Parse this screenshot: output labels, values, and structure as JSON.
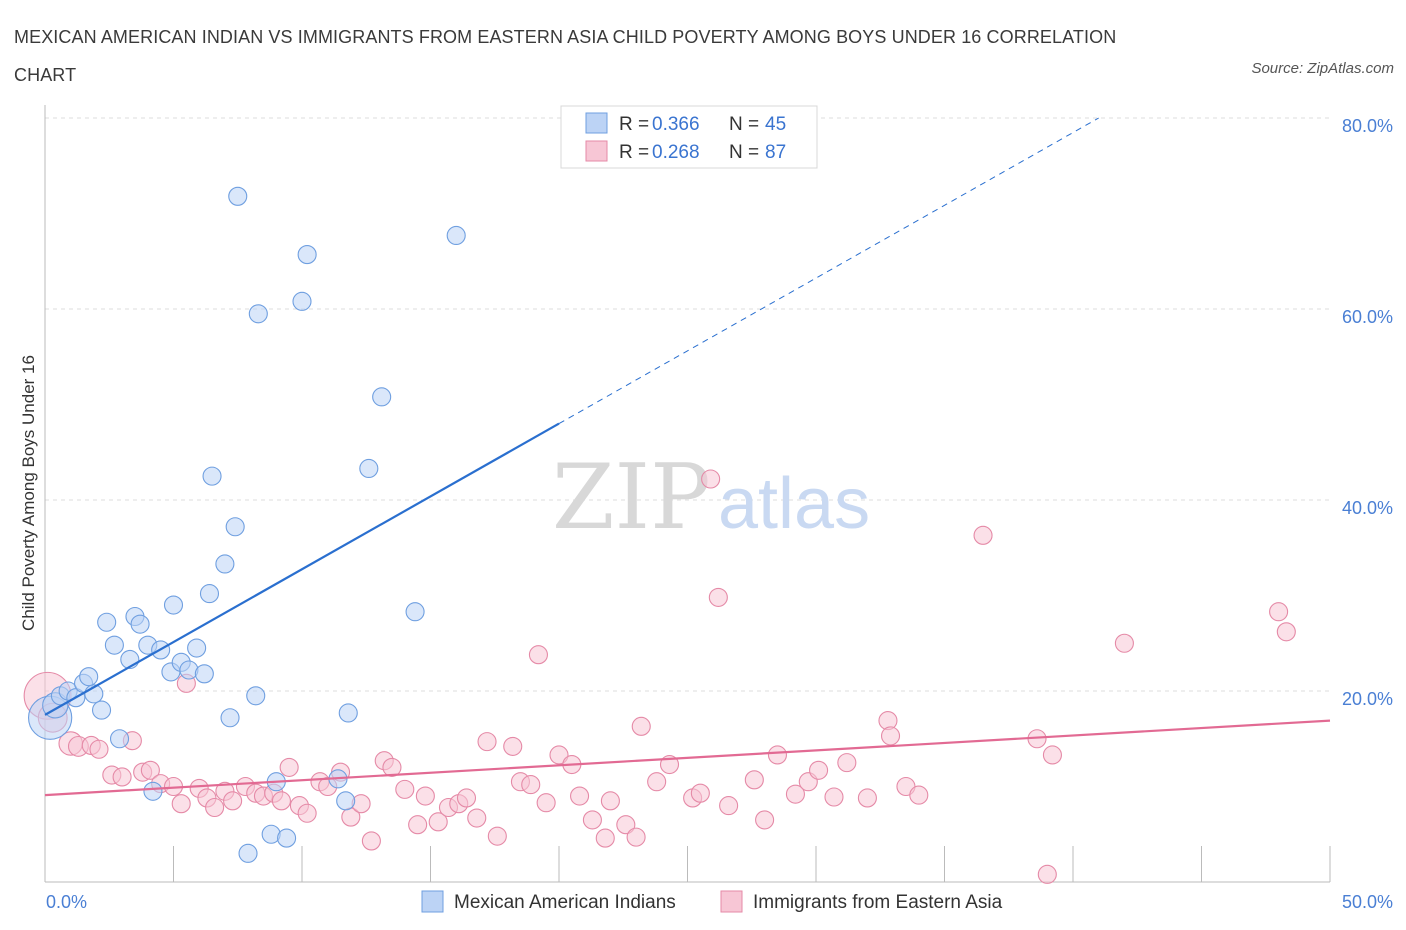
{
  "title": "MEXICAN AMERICAN INDIAN VS IMMIGRANTS FROM EASTERN ASIA CHILD POVERTY AMONG BOYS UNDER 16 CORRELATION CHART",
  "source": "Source: ZipAtlas.com",
  "watermark": {
    "zip": "ZIP",
    "atlas": "atlas"
  },
  "colors": {
    "blue": "#6f9fe0",
    "blue_fill": "#bcd3f5",
    "blue_line": "#2a6fcf",
    "pink": "#e58aa7",
    "pink_fill": "#f7c6d5",
    "pink_line": "#e26a93"
  },
  "legend": {
    "rows": [
      {
        "r_label": "R =",
        "r_value": "0.366",
        "n_label": "N =",
        "n_value": "45"
      },
      {
        "r_label": "R =",
        "r_value": "0.268",
        "n_label": "N =",
        "n_value": "87"
      }
    ]
  },
  "chart_data": {
    "type": "scatter",
    "xlabel": "",
    "ylabel": "Child Poverty Among Boys Under 16",
    "xlim": [
      0,
      50
    ],
    "ylim": [
      0,
      80
    ],
    "x_tick_labels": [
      "0.0%",
      "50.0%"
    ],
    "y_ticks": [
      20,
      40,
      60,
      80
    ],
    "y_tick_labels": [
      "20.0%",
      "40.0%",
      "60.0%",
      "80.0%"
    ],
    "grid": true,
    "legend_position": "top-center",
    "series": [
      {
        "name": "Mexican American Indians",
        "r": 0.366,
        "n": 45,
        "trend": {
          "x0": 0,
          "y0": 17.5,
          "x1": 20,
          "y1": 48,
          "dashed_to_x": 41,
          "dashed_to_y": 80
        },
        "points": [
          [
            0.2,
            17.2,
            2.4
          ],
          [
            0.4,
            18.5,
            1.4
          ],
          [
            0.6,
            19.5,
            1
          ],
          [
            0.9,
            20.0,
            1
          ],
          [
            1.2,
            19.3,
            1
          ],
          [
            1.5,
            20.8,
            1
          ],
          [
            1.7,
            21.5,
            1
          ],
          [
            1.9,
            19.7,
            1
          ],
          [
            2.2,
            18.0,
            1
          ],
          [
            2.4,
            27.2,
            1
          ],
          [
            2.7,
            24.8,
            1
          ],
          [
            2.9,
            15.0,
            1
          ],
          [
            3.3,
            23.3,
            1
          ],
          [
            3.5,
            27.8,
            1
          ],
          [
            3.7,
            27.0,
            1
          ],
          [
            4.0,
            24.8,
            1
          ],
          [
            4.2,
            9.5,
            1
          ],
          [
            4.5,
            24.3,
            1
          ],
          [
            4.9,
            22.0,
            1
          ],
          [
            5.0,
            29.0,
            1
          ],
          [
            5.3,
            23.0,
            1
          ],
          [
            5.6,
            22.2,
            1
          ],
          [
            5.9,
            24.5,
            1
          ],
          [
            6.2,
            21.8,
            1
          ],
          [
            6.4,
            30.2,
            1
          ],
          [
            6.5,
            42.5,
            1
          ],
          [
            7.0,
            33.3,
            1
          ],
          [
            7.2,
            17.2,
            1
          ],
          [
            7.4,
            37.2,
            1
          ],
          [
            7.5,
            71.8,
            1
          ],
          [
            7.9,
            3.0,
            1
          ],
          [
            8.2,
            19.5,
            1
          ],
          [
            8.3,
            59.5,
            1
          ],
          [
            8.8,
            5.0,
            1
          ],
          [
            9.0,
            10.5,
            1
          ],
          [
            9.4,
            4.6,
            1
          ],
          [
            10.0,
            60.8,
            1
          ],
          [
            10.2,
            65.7,
            1
          ],
          [
            11.4,
            10.8,
            1
          ],
          [
            11.7,
            8.5,
            1
          ],
          [
            11.8,
            17.7,
            1
          ],
          [
            12.6,
            43.3,
            1
          ],
          [
            13.1,
            50.8,
            1
          ],
          [
            14.4,
            28.3,
            1
          ],
          [
            16.0,
            67.7,
            1
          ]
        ]
      },
      {
        "name": "Immigrants from Eastern Asia",
        "r": 0.268,
        "n": 87,
        "trend": {
          "x0": 0,
          "y0": 9.1,
          "x1": 50,
          "y1": 16.9
        },
        "points": [
          [
            0.1,
            19.5,
            2.6
          ],
          [
            0.3,
            17.2,
            1.6
          ],
          [
            1.0,
            14.5,
            1.3
          ],
          [
            1.3,
            14.2,
            1.1
          ],
          [
            1.8,
            14.3,
            1
          ],
          [
            2.1,
            13.9,
            1
          ],
          [
            2.6,
            11.2,
            1
          ],
          [
            3.0,
            11.0,
            1
          ],
          [
            3.4,
            14.8,
            1
          ],
          [
            3.8,
            11.5,
            1
          ],
          [
            4.1,
            11.7,
            1
          ],
          [
            4.5,
            10.3,
            1
          ],
          [
            5.0,
            10.0,
            1
          ],
          [
            5.3,
            8.2,
            1
          ],
          [
            5.5,
            20.8,
            1
          ],
          [
            6.0,
            9.8,
            1
          ],
          [
            6.3,
            8.8,
            1
          ],
          [
            6.6,
            7.8,
            1
          ],
          [
            7.0,
            9.5,
            1
          ],
          [
            7.3,
            8.5,
            1
          ],
          [
            7.8,
            10.0,
            1
          ],
          [
            8.2,
            9.3,
            1
          ],
          [
            8.5,
            9.0,
            1
          ],
          [
            8.9,
            9.3,
            1
          ],
          [
            9.2,
            8.5,
            1
          ],
          [
            9.5,
            12.0,
            1
          ],
          [
            9.9,
            8.0,
            1
          ],
          [
            10.2,
            7.2,
            1
          ],
          [
            10.7,
            10.5,
            1
          ],
          [
            11.0,
            10.0,
            1
          ],
          [
            11.5,
            11.5,
            1
          ],
          [
            11.9,
            6.8,
            1
          ],
          [
            12.3,
            8.2,
            1
          ],
          [
            12.7,
            4.3,
            1
          ],
          [
            13.2,
            12.7,
            1
          ],
          [
            13.5,
            12.0,
            1
          ],
          [
            14.0,
            9.7,
            1
          ],
          [
            14.5,
            6.0,
            1
          ],
          [
            14.8,
            9.0,
            1
          ],
          [
            15.3,
            6.3,
            1
          ],
          [
            15.7,
            7.8,
            1
          ],
          [
            16.1,
            8.2,
            1
          ],
          [
            16.4,
            8.8,
            1
          ],
          [
            16.8,
            6.7,
            1
          ],
          [
            17.2,
            14.7,
            1
          ],
          [
            17.6,
            4.8,
            1
          ],
          [
            18.2,
            14.2,
            1
          ],
          [
            18.5,
            10.5,
            1
          ],
          [
            18.9,
            10.2,
            1
          ],
          [
            19.2,
            23.8,
            1
          ],
          [
            19.5,
            8.3,
            1
          ],
          [
            20.0,
            13.3,
            1
          ],
          [
            20.5,
            12.3,
            1
          ],
          [
            20.8,
            9.0,
            1
          ],
          [
            21.3,
            6.5,
            1
          ],
          [
            21.8,
            4.6,
            1
          ],
          [
            22.0,
            8.5,
            1
          ],
          [
            22.6,
            6.0,
            1
          ],
          [
            23.0,
            4.7,
            1
          ],
          [
            23.2,
            16.3,
            1
          ],
          [
            23.8,
            10.5,
            1
          ],
          [
            24.3,
            12.3,
            1
          ],
          [
            25.2,
            8.8,
            1
          ],
          [
            25.5,
            9.3,
            1
          ],
          [
            25.9,
            42.2,
            1
          ],
          [
            26.2,
            29.8,
            1
          ],
          [
            26.6,
            8.0,
            1
          ],
          [
            27.6,
            10.7,
            1
          ],
          [
            28.0,
            6.5,
            1
          ],
          [
            28.5,
            13.3,
            1
          ],
          [
            29.2,
            9.2,
            1
          ],
          [
            29.7,
            10.5,
            1
          ],
          [
            30.1,
            11.7,
            1
          ],
          [
            30.7,
            8.9,
            1
          ],
          [
            31.2,
            12.5,
            1
          ],
          [
            32.0,
            8.8,
            1
          ],
          [
            32.8,
            16.9,
            1
          ],
          [
            32.9,
            15.3,
            1
          ],
          [
            33.5,
            10.0,
            1
          ],
          [
            34.0,
            9.1,
            1
          ],
          [
            36.5,
            36.3,
            1
          ],
          [
            38.6,
            15.0,
            1
          ],
          [
            39.2,
            13.3,
            1
          ],
          [
            39.0,
            0.8,
            1
          ],
          [
            42.0,
            25.0,
            1
          ],
          [
            48.0,
            28.3,
            1
          ],
          [
            48.3,
            26.2,
            1
          ]
        ]
      }
    ]
  }
}
